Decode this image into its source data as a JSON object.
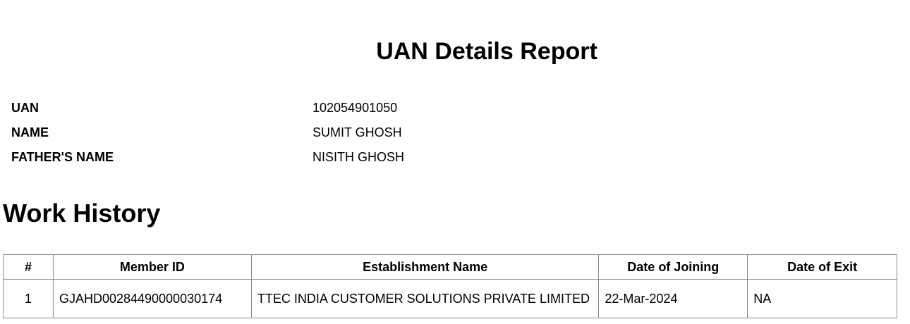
{
  "title": "UAN Details Report",
  "details": [
    {
      "label": "UAN",
      "value": "102054901050"
    },
    {
      "label": "NAME",
      "value": "SUMIT GHOSH"
    },
    {
      "label": "FATHER'S NAME",
      "value": "NISITH GHOSH"
    }
  ],
  "work_history": {
    "heading": "Work History",
    "columns": [
      "#",
      "Member ID",
      "Establishment Name",
      "Date of Joining",
      "Date of Exit"
    ],
    "rows": [
      [
        "1",
        "GJAHD00284490000030174",
        "TTEC INDIA CUSTOMER SOLUTIONS PRIVATE LIMITED",
        "22-Mar-2024",
        "NA"
      ]
    ]
  }
}
